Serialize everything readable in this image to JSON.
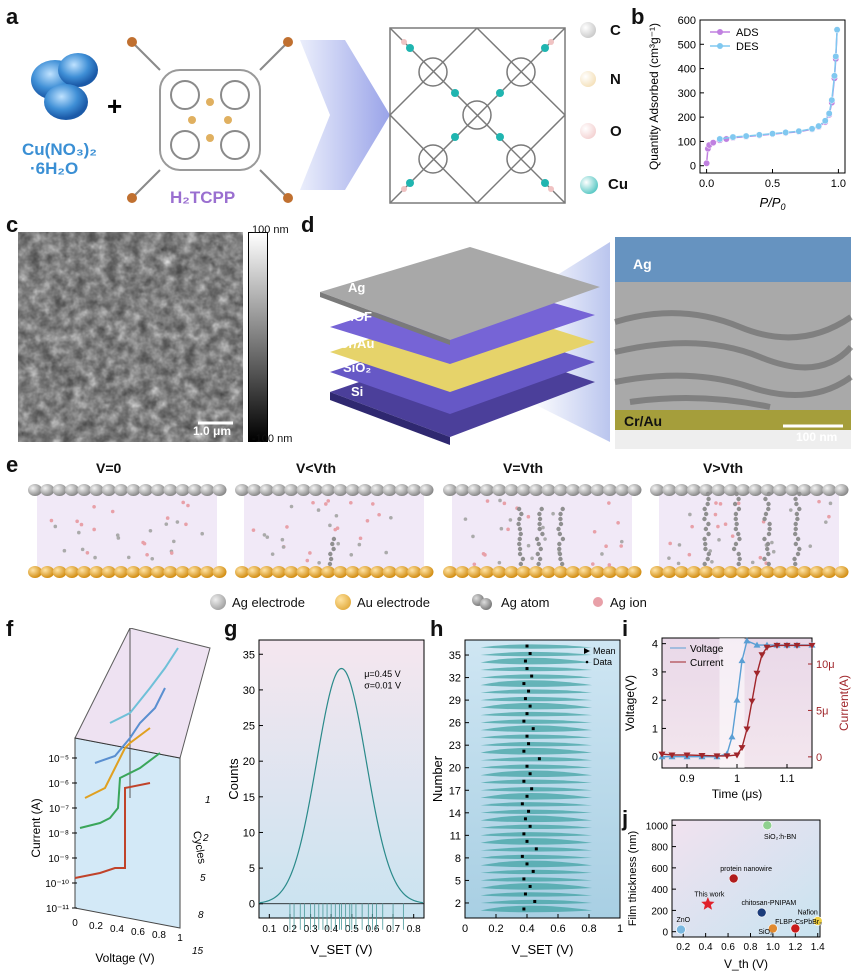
{
  "panel_labels": {
    "a": "a",
    "b": "b",
    "c": "c",
    "d": "d",
    "e": "e",
    "f": "f",
    "g": "g",
    "h": "h",
    "i": "i",
    "j": "j"
  },
  "panel_a": {
    "reagent": "Cu(NO₃)₂",
    "reagent2": "·6H₂O",
    "linker": "H₂TCPP",
    "plus": "+",
    "legend": [
      {
        "symbol": "C",
        "color": "#b8b8b8"
      },
      {
        "symbol": "N",
        "color": "#f1d7a4"
      },
      {
        "symbol": "O",
        "color": "#f0c3c3"
      },
      {
        "symbol": "Cu",
        "color": "#20b5b0"
      }
    ]
  },
  "panel_b": {
    "chart_data": {
      "type": "scatter",
      "xlabel": "P/P0",
      "ylabel": "Quantity Adsorbed (cm³g⁻¹)",
      "xlim": [
        -0.05,
        1.05
      ],
      "ylim": [
        -30,
        600
      ],
      "xticks": [
        "0.0",
        "0.5",
        "1.0"
      ],
      "yticks": [
        "0",
        "100",
        "200",
        "300",
        "400",
        "500",
        "600"
      ],
      "series": [
        {
          "name": "ADS",
          "color": "#c080e0",
          "x": [
            0.0,
            0.01,
            0.02,
            0.05,
            0.1,
            0.15,
            0.2,
            0.3,
            0.4,
            0.5,
            0.6,
            0.7,
            0.8,
            0.85,
            0.9,
            0.93,
            0.95,
            0.97,
            0.98,
            0.99
          ],
          "y": [
            10,
            70,
            85,
            95,
            105,
            110,
            115,
            120,
            125,
            130,
            135,
            140,
            150,
            160,
            180,
            210,
            260,
            360,
            440,
            560
          ]
        },
        {
          "name": "DES",
          "color": "#80c8f0",
          "x": [
            0.99,
            0.98,
            0.97,
            0.95,
            0.93,
            0.9,
            0.85,
            0.8,
            0.7,
            0.6,
            0.5,
            0.4,
            0.3,
            0.2,
            0.1
          ],
          "y": [
            560,
            450,
            370,
            270,
            215,
            185,
            163,
            152,
            142,
            137,
            132,
            127,
            122,
            118,
            110
          ]
        }
      ]
    }
  },
  "panel_c": {
    "scalebar": "1.0 μm",
    "cbar_top": "100 nm",
    "cbar_bottom": "-100 nm"
  },
  "panel_d": {
    "layers": [
      "Ag",
      "MOF",
      "Cr/Au",
      "SiO₂",
      "Si"
    ],
    "tem_top": "Ag",
    "tem_bottom": "Cr/Au",
    "scalebar": "100 nm"
  },
  "panel_e": {
    "states": [
      "V=0",
      "V<Vth",
      "V=Vth",
      "V>Vth"
    ],
    "legend": [
      "Ag electrode",
      "Au electrode",
      "Ag atom",
      "Ag ion"
    ]
  },
  "panel_f": {
    "ylabel": "Current (A)",
    "xlabel": "Voltage (V)",
    "zlabel": "Cycles",
    "yticks": [
      "10⁻⁵",
      "10⁻⁶",
      "10⁻⁷",
      "10⁻⁸",
      "10⁻⁹",
      "10⁻¹⁰",
      "10⁻¹¹"
    ],
    "xticks": [
      "0",
      "0.2",
      "0.4",
      "0.6",
      "0.8",
      "1"
    ],
    "cycles": [
      "1",
      "2",
      "5",
      "8",
      "15"
    ]
  },
  "panel_g": {
    "chart_data": {
      "type": "line",
      "xlabel": "V_SET (V)",
      "ylabel": "Counts",
      "xlim": [
        0.05,
        0.85
      ],
      "ylim": [
        -2,
        37
      ],
      "xticks": [
        "0.1",
        "0.2",
        "0.3",
        "0.4",
        "0.5",
        "0.6",
        "0.7",
        "0.8"
      ],
      "yticks": [
        "0",
        "5",
        "10",
        "15",
        "20",
        "25",
        "30",
        "35"
      ],
      "mu": 0.45,
      "sigma": 0.01,
      "peak": 33,
      "annotation_mu": "μ=0.45 V",
      "annotation_sigma": "σ=0.01 V",
      "rug": [
        0.2,
        0.22,
        0.25,
        0.27,
        0.3,
        0.32,
        0.34,
        0.36,
        0.38,
        0.4,
        0.42,
        0.44,
        0.45,
        0.47,
        0.49,
        0.5,
        0.52,
        0.55,
        0.58,
        0.6,
        0.62,
        0.65,
        0.7,
        0.75
      ]
    }
  },
  "panel_h": {
    "chart_data": {
      "type": "scatter",
      "xlabel": "V_SET (V)",
      "ylabel": "Number",
      "xlim": [
        0,
        1
      ],
      "ylim": [
        0,
        37
      ],
      "xticks": [
        "0",
        "0.2",
        "0.4",
        "0.6",
        "0.8",
        "1"
      ],
      "yticks": [
        "2",
        "5",
        "8",
        "11",
        "14",
        "17",
        "20",
        "23",
        "26",
        "29",
        "32",
        "35"
      ],
      "legend": [
        "Mean",
        "Data"
      ],
      "means": [
        0.38,
        0.45,
        0.39,
        0.42,
        0.38,
        0.44,
        0.4,
        0.37,
        0.46,
        0.4,
        0.38,
        0.42,
        0.39,
        0.41,
        0.37,
        0.4,
        0.43,
        0.38,
        0.42,
        0.4,
        0.48,
        0.38,
        0.41,
        0.4,
        0.44,
        0.38,
        0.4,
        0.42,
        0.39,
        0.41,
        0.38,
        0.43,
        0.4,
        0.39,
        0.42,
        0.4
      ]
    }
  },
  "panel_i": {
    "chart_data": {
      "type": "line",
      "xlabel": "Time (μs)",
      "ylabel_left": "Voltage(V)",
      "ylabel_right": "Current(A)",
      "xlim": [
        0.85,
        1.15
      ],
      "xticks": [
        "0.9",
        "1",
        "1.1"
      ],
      "yticks_left": [
        "0",
        "1",
        "2",
        "3",
        "4"
      ],
      "yticks_right": [
        "0",
        "5μ",
        "10μ"
      ],
      "series": [
        {
          "name": "Voltage",
          "color": "#5a9fd4",
          "x": [
            0.85,
            0.87,
            0.9,
            0.93,
            0.96,
            0.98,
            0.99,
            1.0,
            1.01,
            1.02,
            1.04,
            1.06,
            1.08,
            1.1,
            1.12,
            1.15
          ],
          "y": [
            0,
            0,
            0,
            0,
            0,
            0.1,
            0.7,
            2.0,
            3.4,
            4.1,
            3.95,
            3.95,
            3.95,
            3.95,
            3.95,
            3.95
          ]
        },
        {
          "name": "Current",
          "color": "#a0262b",
          "x": [
            0.85,
            0.87,
            0.9,
            0.93,
            0.96,
            0.98,
            1.0,
            1.01,
            1.02,
            1.03,
            1.04,
            1.05,
            1.06,
            1.08,
            1.1,
            1.12,
            1.15
          ],
          "y": [
            0.3,
            0.2,
            0.2,
            0.15,
            0.1,
            0.1,
            0.2,
            1.0,
            3.0,
            6.0,
            9.0,
            11.0,
            11.8,
            12.0,
            12.0,
            12.0,
            12.0
          ]
        }
      ]
    }
  },
  "panel_j": {
    "chart_data": {
      "type": "scatter",
      "xlabel": "V_th (V)",
      "ylabel": "Film thickness (nm)",
      "xlim": [
        0.1,
        1.42
      ],
      "ylim": [
        -50,
        1050
      ],
      "xticks": [
        "0.2",
        "0.4",
        "0.6",
        "0.8",
        "1.0",
        "1.2",
        "1.4"
      ],
      "yticks": [
        "0",
        "200",
        "400",
        "600",
        "800",
        "1000"
      ],
      "points": [
        {
          "label": "ZnO",
          "x": 0.18,
          "y": 20,
          "color": "#7ab8e0"
        },
        {
          "label": "This work",
          "x": 0.42,
          "y": 260,
          "color": "#e0202a",
          "star": true
        },
        {
          "label": "protein nanowire",
          "x": 0.65,
          "y": 500,
          "color": "#b01c1c"
        },
        {
          "label": "SiO₂:h-BN",
          "x": 0.95,
          "y": 1000,
          "color": "#8fd08f"
        },
        {
          "label": "chitosan-PNIPAM",
          "x": 0.9,
          "y": 180,
          "color": "#1b3c7a"
        },
        {
          "label": "SiO₂",
          "x": 1.0,
          "y": 30,
          "color": "#e08a30"
        },
        {
          "label": "FLBP-CsPbBr₃",
          "x": 1.2,
          "y": 30,
          "color": "#c81b1b"
        },
        {
          "label": "Nafion",
          "x": 1.4,
          "y": 100,
          "color": "#f0d040"
        }
      ]
    }
  }
}
